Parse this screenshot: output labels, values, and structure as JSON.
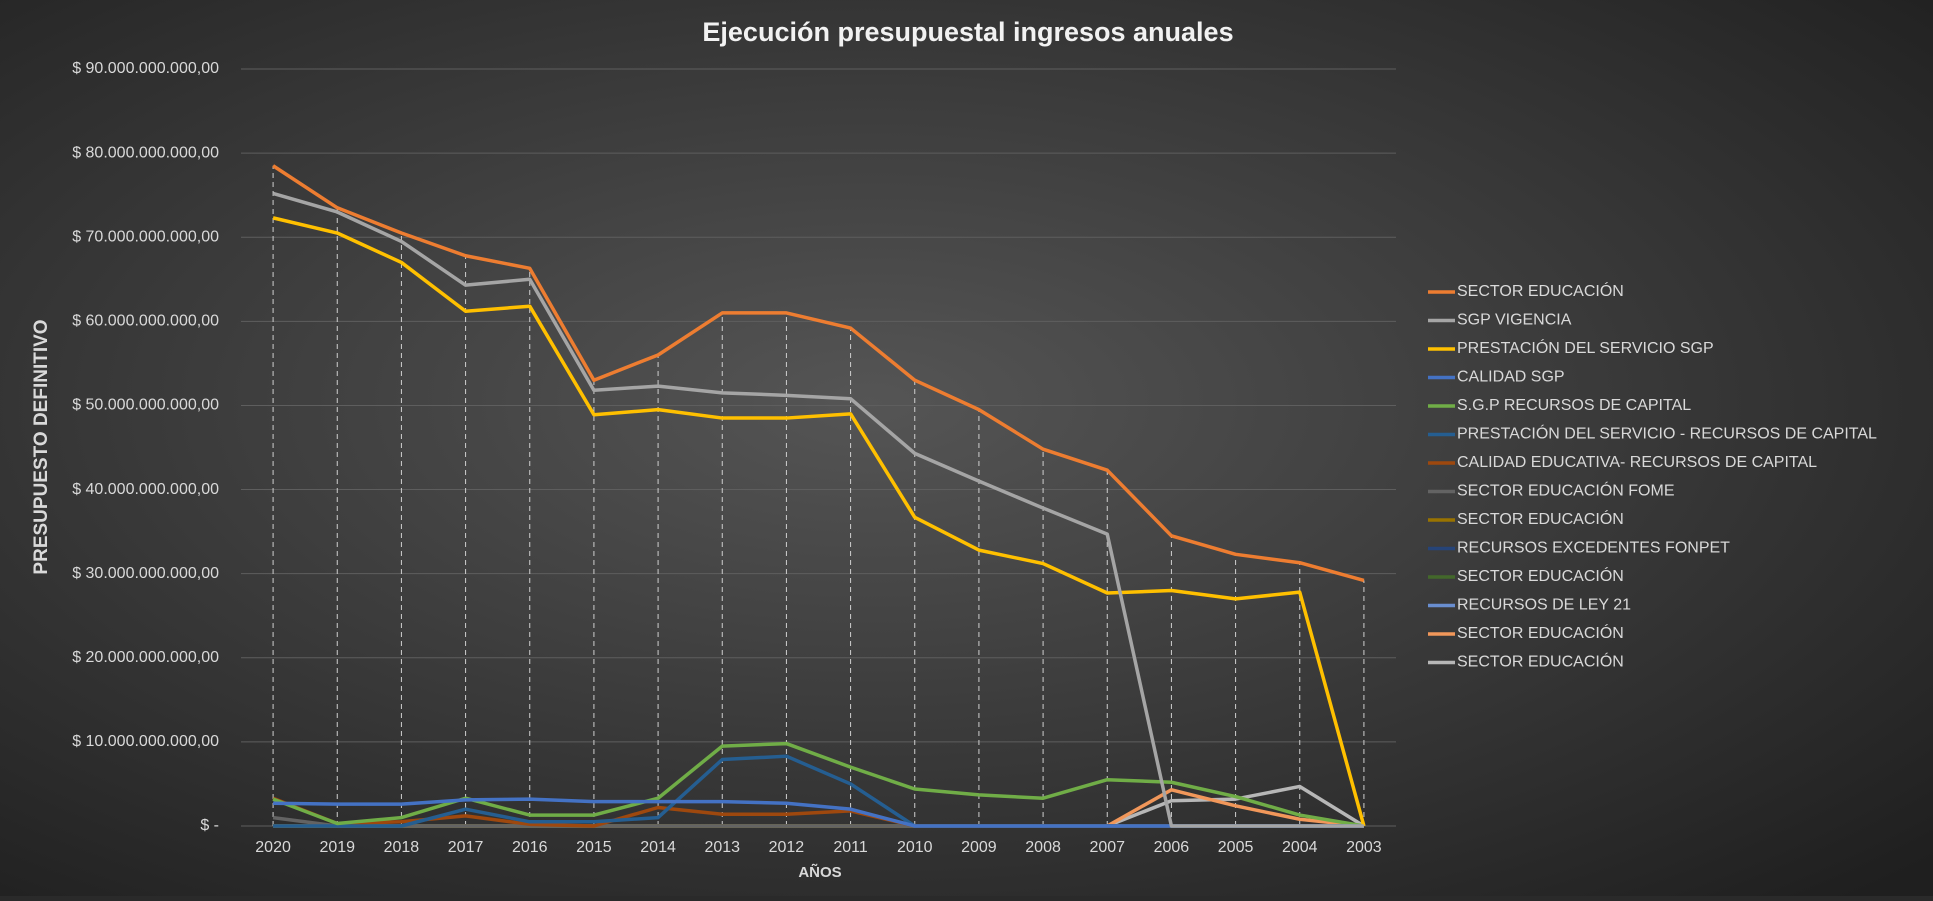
{
  "chart_data": {
    "type": "line",
    "title": "Ejecución presupuestal ingresos anuales",
    "x_label": "AÑOS",
    "y_label": "PRESUPUESTO DEFINITIVO",
    "categories": [
      "2020",
      "2019",
      "2018",
      "2017",
      "2016",
      "2015",
      "2014",
      "2013",
      "2012",
      "2011",
      "2010",
      "2009",
      "2008",
      "2007",
      "2006",
      "2005",
      "2004",
      "2003"
    ],
    "ylim": [
      0,
      90000000000
    ],
    "yticks": [
      {
        "value": 0,
        "label": "$ -"
      },
      {
        "value": 10000000000,
        "label": "$ 10.000.000.000,00"
      },
      {
        "value": 20000000000,
        "label": "$ 20.000.000.000,00"
      },
      {
        "value": 30000000000,
        "label": "$ 30.000.000.000,00"
      },
      {
        "value": 40000000000,
        "label": "$ 40.000.000.000,00"
      },
      {
        "value": 50000000000,
        "label": "$ 50.000.000.000,00"
      },
      {
        "value": 60000000000,
        "label": "$ 60.000.000.000,00"
      },
      {
        "value": 70000000000,
        "label": "$ 70.000.000.000,00"
      },
      {
        "value": 80000000000,
        "label": "$ 80.000.000.000,00"
      },
      {
        "value": 90000000000,
        "label": "$ 90.000.000.000,00"
      }
    ],
    "grid": true,
    "legend": "right",
    "series": [
      {
        "name": "SECTOR EDUCACIÓN",
        "color": "#ed7d31",
        "values": [
          78500000000,
          73500000000,
          70500000000,
          67800000000,
          66300000000,
          53000000000,
          56000000000,
          61000000000,
          61000000000,
          59200000000,
          53000000000,
          49500000000,
          44800000000,
          42300000000,
          34500000000,
          32300000000,
          31300000000,
          29200000000
        ]
      },
      {
        "name": "SGP VIGENCIA",
        "color": "#a5a5a5",
        "values": [
          75200000000,
          73000000000,
          69500000000,
          64300000000,
          65000000000,
          51800000000,
          52300000000,
          51500000000,
          51200000000,
          50800000000,
          44300000000,
          41000000000,
          37800000000,
          34700000000,
          0,
          0,
          0,
          0
        ]
      },
      {
        "name": "PRESTACIÓN DEL SERVICIO SGP",
        "color": "#ffc000",
        "values": [
          72300000000,
          70500000000,
          67000000000,
          61200000000,
          61800000000,
          48900000000,
          49500000000,
          48500000000,
          48500000000,
          49000000000,
          36700000000,
          32800000000,
          31200000000,
          27700000000,
          28000000000,
          27000000000,
          27800000000,
          0
        ]
      },
      {
        "name": "CALIDAD SGP",
        "color": "#4472c4",
        "values": [
          2700000000,
          2600000000,
          2600000000,
          3100000000,
          3200000000,
          2900000000,
          2900000000,
          2900000000,
          2700000000,
          2000000000,
          0,
          0,
          0,
          0,
          0,
          0,
          0,
          0
        ]
      },
      {
        "name": "S.G.P RECURSOS DE CAPITAL",
        "color": "#70ad47",
        "values": [
          3200000000,
          300000000,
          1000000000,
          3300000000,
          1300000000,
          1300000000,
          3300000000,
          9500000000,
          9800000000,
          7000000000,
          4400000000,
          3700000000,
          3300000000,
          5500000000,
          5200000000,
          3500000000,
          1300000000,
          0
        ]
      },
      {
        "name": "PRESTACIÓN DEL SERVICIO - RECURSOS DE CAPITAL",
        "color": "#255e91",
        "values": [
          0,
          0,
          0,
          2000000000,
          500000000,
          500000000,
          1000000000,
          7900000000,
          8300000000,
          5000000000,
          0,
          0,
          0,
          0,
          0,
          0,
          0,
          0
        ]
      },
      {
        "name": "CALIDAD EDUCATIVA- RECURSOS DE CAPITAL",
        "color": "#9e480e",
        "values": [
          3300000000,
          300000000,
          500000000,
          1200000000,
          200000000,
          0,
          2200000000,
          1400000000,
          1400000000,
          1800000000,
          0,
          0,
          0,
          0,
          0,
          0,
          0,
          0
        ]
      },
      {
        "name": "SECTOR EDUCACIÓN FOME",
        "color": "#636363",
        "values": [
          1000000000,
          0,
          0,
          0,
          0,
          0,
          0,
          0,
          0,
          0,
          0,
          0,
          0,
          0,
          0,
          0,
          0,
          0
        ]
      },
      {
        "name": "SECTOR EDUCACIÓN",
        "color": "#997300",
        "values": [
          0,
          0,
          0,
          0,
          0,
          0,
          0,
          0,
          0,
          0,
          0,
          0,
          0,
          0,
          0,
          0,
          0,
          0
        ]
      },
      {
        "name": "RECURSOS EXCEDENTES FONPET",
        "color": "#264478",
        "values": [
          0,
          0,
          0,
          0,
          0,
          0,
          0,
          0,
          0,
          0,
          0,
          0,
          0,
          0,
          0,
          0,
          0,
          0
        ]
      },
      {
        "name": "SECTOR EDUCACIÓN",
        "color": "#43682b",
        "values": [
          0,
          0,
          0,
          0,
          0,
          0,
          0,
          0,
          0,
          0,
          0,
          0,
          0,
          0,
          0,
          0,
          0,
          0
        ]
      },
      {
        "name": "RECURSOS DE LEY 21",
        "color": "#698ed0",
        "values": [
          0,
          0,
          0,
          0,
          0,
          0,
          0,
          0,
          0,
          0,
          0,
          0,
          0,
          0,
          0,
          0,
          0,
          0
        ]
      },
      {
        "name": "SECTOR EDUCACIÓN",
        "color": "#f1975a",
        "values": [
          0,
          0,
          0,
          0,
          0,
          0,
          0,
          0,
          0,
          0,
          0,
          0,
          0,
          0,
          4300000000,
          2400000000,
          800000000,
          0
        ]
      },
      {
        "name": "SECTOR EDUCACIÓN",
        "color": "#b7b7b7",
        "values": [
          0,
          0,
          0,
          0,
          0,
          0,
          0,
          0,
          0,
          0,
          0,
          0,
          0,
          0,
          3000000000,
          3200000000,
          4700000000,
          0
        ]
      }
    ]
  }
}
